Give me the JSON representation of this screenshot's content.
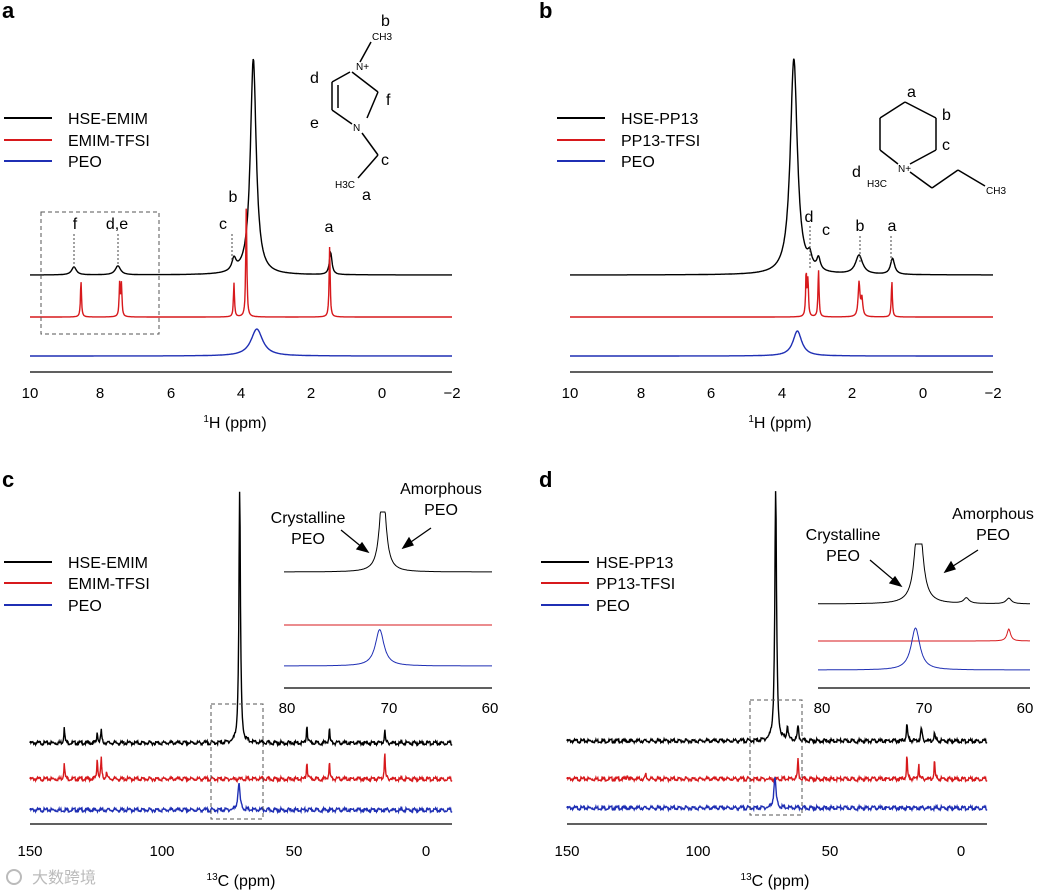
{
  "chart_data": [
    {
      "panel_label": "a",
      "type": "line",
      "xlabel_sup": "1",
      "xlabel_main": "H (ppm)",
      "xlim": [
        10,
        -2
      ],
      "x_ticks": [
        "10",
        "8",
        "6",
        "4",
        "2",
        "0",
        "−2"
      ],
      "legend": [
        "HSE-EMIM",
        "EMIM-TFSI",
        "PEO"
      ],
      "series": [
        {
          "name": "HSE-EMIM",
          "color": "#000000",
          "peaks": [
            {
              "x": 8.75,
              "y": 8,
              "w": 0.08
            },
            {
              "x": 7.5,
              "y": 9,
              "w": 0.09
            },
            {
              "x": 4.2,
              "y": 12,
              "w": 0.07
            },
            {
              "x": 3.65,
              "y": 216,
              "w": 0.1
            },
            {
              "x": 1.45,
              "y": 22,
              "w": 0.045
            }
          ]
        },
        {
          "name": "EMIM-TFSI",
          "color": "#d7191c",
          "peaks": [
            {
              "x": 8.55,
              "y": 36,
              "w": 0.018
            },
            {
              "x": 7.45,
              "y": 34,
              "w": 0.018
            },
            {
              "x": 7.4,
              "y": 32,
              "w": 0.018
            },
            {
              "x": 4.2,
              "y": 34,
              "w": 0.018
            },
            {
              "x": 3.85,
              "y": 112,
              "w": 0.018
            },
            {
              "x": 1.48,
              "y": 70,
              "w": 0.018
            }
          ]
        },
        {
          "name": "PEO",
          "color": "#1f2fb4",
          "peaks": [
            {
              "x": 3.55,
              "y": 27,
              "w": 0.2
            }
          ]
        }
      ],
      "peak_labels": [
        "f",
        "d,e",
        "c",
        "b",
        "a"
      ],
      "structure_labels": [
        "b",
        "CH3",
        "N+",
        "d",
        "f",
        "e",
        "N",
        "c",
        "H3C",
        "a"
      ]
    },
    {
      "panel_label": "b",
      "type": "line",
      "xlabel_sup": "1",
      "xlabel_main": "H (ppm)",
      "xlim": [
        10,
        -2
      ],
      "x_ticks": [
        "10",
        "8",
        "6",
        "4",
        "2",
        "0",
        "−2"
      ],
      "legend": [
        "HSE-PP13",
        "PP13-TFSI",
        "PEO"
      ],
      "series": [
        {
          "name": "HSE-PP13",
          "color": "#000000",
          "peaks": [
            {
              "x": 3.65,
              "y": 216,
              "w": 0.12
            },
            {
              "x": 3.2,
              "y": 12,
              "w": 0.07
            },
            {
              "x": 2.95,
              "y": 12,
              "w": 0.06
            },
            {
              "x": 1.8,
              "y": 19,
              "w": 0.12
            },
            {
              "x": 0.85,
              "y": 16,
              "w": 0.07
            }
          ]
        },
        {
          "name": "PP13-TFSI",
          "color": "#d7191c",
          "peaks": [
            {
              "x": 3.3,
              "y": 44,
              "w": 0.018
            },
            {
              "x": 3.25,
              "y": 36,
              "w": 0.018
            },
            {
              "x": 2.95,
              "y": 48,
              "w": 0.018
            },
            {
              "x": 1.8,
              "y": 34,
              "w": 0.03
            },
            {
              "x": 1.72,
              "y": 18,
              "w": 0.03
            },
            {
              "x": 0.87,
              "y": 36,
              "w": 0.018
            }
          ]
        },
        {
          "name": "PEO",
          "color": "#1f2fb4",
          "peaks": [
            {
              "x": 3.55,
              "y": 25,
              "w": 0.15
            }
          ]
        }
      ],
      "peak_labels": [
        "d",
        "c",
        "b",
        "a"
      ],
      "structure_labels": [
        "a",
        "b",
        "c",
        "d",
        "H3C",
        "N+",
        "CH3"
      ]
    },
    {
      "panel_label": "c",
      "type": "line",
      "xlabel_sup": "13",
      "xlabel_main": "C (ppm)",
      "xlim": [
        150,
        -10
      ],
      "x_ticks": [
        "150",
        "100",
        "50",
        "0"
      ],
      "legend": [
        "HSE-EMIM",
        "EMIM-TFSI",
        "PEO"
      ],
      "series": [
        {
          "name": "HSE-EMIM",
          "color": "#000000",
          "peaks": [
            {
              "x": 70.5,
              "y": 252,
              "w": 0.35
            },
            {
              "x": 137,
              "y": 18,
              "w": 0.2
            },
            {
              "x": 124.5,
              "y": 12,
              "w": 0.2
            },
            {
              "x": 123,
              "y": 14,
              "w": 0.2
            },
            {
              "x": 45,
              "y": 19,
              "w": 0.2
            },
            {
              "x": 36.5,
              "y": 16,
              "w": 0.2
            },
            {
              "x": 15.5,
              "y": 14,
              "w": 0.2
            }
          ]
        },
        {
          "name": "EMIM-TFSI",
          "color": "#d7191c",
          "peaks": [
            {
              "x": 137,
              "y": 18,
              "w": 0.2
            },
            {
              "x": 124.5,
              "y": 22,
              "w": 0.2
            },
            {
              "x": 123,
              "y": 22,
              "w": 0.2
            },
            {
              "x": 121,
              "y": 8,
              "w": 0.2
            },
            {
              "x": 45,
              "y": 18,
              "w": 0.2
            },
            {
              "x": 36.5,
              "y": 18,
              "w": 0.2
            },
            {
              "x": 15.5,
              "y": 28,
              "w": 0.2
            }
          ]
        },
        {
          "name": "PEO",
          "color": "#1f2fb4",
          "peaks": [
            {
              "x": 70.8,
              "y": 26,
              "w": 0.5
            }
          ]
        }
      ],
      "inset": {
        "x_ticks": [
          "80",
          "70",
          "60"
        ],
        "xlim": [
          80,
          60
        ]
      },
      "annotations": [
        "Crystalline",
        "PEO",
        "Amorphous",
        "PEO"
      ]
    },
    {
      "panel_label": "d",
      "type": "line",
      "xlabel_sup": "13",
      "xlabel_main": "C (ppm)",
      "xlim": [
        150,
        -10
      ],
      "x_ticks": [
        "150",
        "100",
        "50",
        "0"
      ],
      "legend": [
        "HSE-PP13",
        "PP13-TFSI",
        "PEO"
      ],
      "series": [
        {
          "name": "HSE-PP13",
          "color": "#000000",
          "peaks": [
            {
              "x": 70.5,
              "y": 250,
              "w": 0.4
            },
            {
              "x": 66,
              "y": 14,
              "w": 0.3
            },
            {
              "x": 62,
              "y": 14,
              "w": 0.3
            },
            {
              "x": 20.5,
              "y": 16,
              "w": 0.3
            },
            {
              "x": 15,
              "y": 13,
              "w": 0.3
            },
            {
              "x": 10,
              "y": 8,
              "w": 0.3
            }
          ]
        },
        {
          "name": "PP13-TFSI",
          "color": "#d7191c",
          "peaks": [
            {
              "x": 62,
              "y": 20,
              "w": 0.2
            },
            {
              "x": 20.5,
              "y": 24,
              "w": 0.2
            },
            {
              "x": 16,
              "y": 16,
              "w": 0.2
            },
            {
              "x": 10,
              "y": 20,
              "w": 0.2
            },
            {
              "x": 120,
              "y": 5,
              "w": 0.2
            },
            {
              "x": 127,
              "y": 5,
              "w": 0.2
            }
          ]
        },
        {
          "name": "PEO",
          "color": "#1f2fb4",
          "peaks": [
            {
              "x": 70.8,
              "y": 30,
              "w": 0.5
            }
          ]
        }
      ],
      "inset": {
        "x_ticks": [
          "80",
          "70",
          "60"
        ],
        "xlim": [
          80,
          60
        ]
      },
      "annotations": [
        "Crystalline",
        "PEO",
        "Amorphous",
        "PEO"
      ]
    }
  ],
  "watermark": "大数跨境"
}
